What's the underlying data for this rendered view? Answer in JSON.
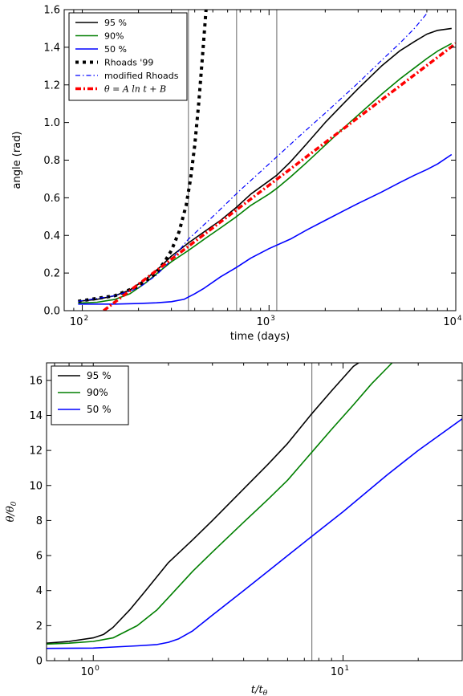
{
  "chart_data": [
    {
      "type": "line",
      "xscale": "log",
      "xlim": [
        80,
        10000
      ],
      "ylim": [
        0,
        1.6
      ],
      "xlabel": "time (days)",
      "ylabel": "angle (rad)",
      "xticks": [
        100,
        1000,
        10000
      ],
      "xtick_labels": [
        [
          "10",
          "2"
        ],
        [
          "10",
          "3"
        ],
        [
          "10",
          "4"
        ]
      ],
      "yticks": [
        0.0,
        0.2,
        0.4,
        0.6,
        0.8,
        1.0,
        1.2,
        1.4,
        1.6
      ],
      "ytick_labels": [
        "0.0",
        "0.2",
        "0.4",
        "0.6",
        "0.8",
        "1.0",
        "1.2",
        "1.4",
        "1.6"
      ],
      "vlines": [
        370,
        670,
        1100
      ],
      "legend_position": "top-left",
      "series": [
        {
          "name": "95 %",
          "color": "#000000",
          "style": "solid",
          "width": 1.6,
          "x": [
            95,
            120,
            150,
            180,
            220,
            260,
            300,
            370,
            450,
            550,
            670,
            800,
            1000,
            1100,
            1300,
            1600,
            2000,
            2500,
            3000,
            4000,
            5000,
            6000,
            7000,
            8000,
            9500
          ],
          "y": [
            0.05,
            0.06,
            0.08,
            0.11,
            0.17,
            0.23,
            0.29,
            0.36,
            0.42,
            0.48,
            0.55,
            0.62,
            0.69,
            0.72,
            0.79,
            0.89,
            1.0,
            1.1,
            1.18,
            1.3,
            1.38,
            1.43,
            1.47,
            1.49,
            1.5
          ]
        },
        {
          "name": "90%",
          "color": "#007f00",
          "style": "solid",
          "width": 1.6,
          "x": [
            95,
            120,
            150,
            180,
            220,
            260,
            300,
            370,
            450,
            550,
            670,
            800,
            1000,
            1100,
            1300,
            1600,
            2000,
            2500,
            3000,
            4000,
            5000,
            6000,
            7000,
            8000,
            9500
          ],
          "y": [
            0.04,
            0.045,
            0.06,
            0.09,
            0.15,
            0.21,
            0.26,
            0.32,
            0.38,
            0.44,
            0.5,
            0.56,
            0.62,
            0.65,
            0.71,
            0.79,
            0.88,
            0.97,
            1.04,
            1.15,
            1.23,
            1.29,
            1.34,
            1.38,
            1.42
          ]
        },
        {
          "name": "50 %",
          "color": "#0000ff",
          "style": "solid",
          "width": 1.6,
          "x": [
            95,
            150,
            200,
            250,
            300,
            350,
            400,
            450,
            550,
            670,
            800,
            1000,
            1300,
            1600,
            2000,
            2500,
            3000,
            4000,
            5000,
            6000,
            7000,
            8000,
            9500
          ],
          "y": [
            0.035,
            0.035,
            0.038,
            0.042,
            0.048,
            0.06,
            0.09,
            0.12,
            0.18,
            0.23,
            0.28,
            0.33,
            0.38,
            0.43,
            0.48,
            0.53,
            0.57,
            0.63,
            0.68,
            0.72,
            0.75,
            0.78,
            0.83
          ]
        },
        {
          "name": "Rhoads '99",
          "color": "#000000",
          "style": "thickdot",
          "width": 4,
          "x": [
            95,
            150,
            200,
            250,
            280,
            300,
            330,
            360,
            380,
            400,
            420,
            440,
            460
          ],
          "y": [
            0.05,
            0.08,
            0.13,
            0.2,
            0.27,
            0.32,
            0.42,
            0.56,
            0.7,
            0.88,
            1.1,
            1.35,
            1.6
          ]
        },
        {
          "name": "modified Rhoads",
          "color": "#0000ff",
          "style": "dashdot",
          "width": 1.2,
          "x": [
            95,
            150,
            200,
            250,
            300,
            370,
            500,
            700,
            1000,
            1500,
            2000,
            3000,
            4000,
            5000,
            6000,
            7000
          ],
          "y": [
            0.05,
            0.08,
            0.12,
            0.19,
            0.27,
            0.38,
            0.5,
            0.64,
            0.78,
            0.94,
            1.05,
            1.21,
            1.33,
            1.42,
            1.5,
            1.58
          ]
        },
        {
          "name": "θ = A ln t + B",
          "color": "#ff0000",
          "style": "thickdashdot",
          "width": 3.5,
          "x": [
            130,
            10000
          ],
          "y": [
            0.0,
            1.42
          ]
        }
      ]
    },
    {
      "type": "line",
      "xscale": "log",
      "xlim": [
        0.65,
        30
      ],
      "ylim": [
        0,
        17
      ],
      "xlabel": "t/tθ",
      "ylabel": "θ/θ0",
      "xticks": [
        1,
        10
      ],
      "xtick_labels": [
        [
          "10",
          "0"
        ],
        [
          "10",
          "1"
        ]
      ],
      "yticks": [
        0,
        2,
        4,
        6,
        8,
        10,
        12,
        14,
        16
      ],
      "ytick_labels": [
        "0",
        "2",
        "4",
        "6",
        "8",
        "10",
        "12",
        "14",
        "16"
      ],
      "vlines": [
        7.5
      ],
      "legend_position": "top-left",
      "series": [
        {
          "name": "95 %",
          "color": "#000000",
          "style": "solid",
          "width": 1.6,
          "x": [
            0.65,
            0.8,
            1.0,
            1.1,
            1.2,
            1.4,
            1.6,
            2.0,
            2.5,
            3.0,
            4.0,
            5.0,
            6.0,
            7.5,
            9.0,
            11.0,
            13.0
          ],
          "y": [
            1.0,
            1.1,
            1.3,
            1.5,
            1.9,
            2.9,
            3.9,
            5.6,
            6.9,
            8.0,
            9.8,
            11.2,
            12.4,
            14.1,
            15.4,
            16.8,
            17.5
          ]
        },
        {
          "name": "90%",
          "color": "#007f00",
          "style": "solid",
          "width": 1.6,
          "x": [
            0.65,
            0.8,
            1.0,
            1.2,
            1.5,
            1.8,
            2.0,
            2.5,
            3.0,
            4.0,
            5.0,
            6.0,
            7.5,
            9.0,
            11.0,
            13.0,
            15.0,
            17.0
          ],
          "y": [
            0.95,
            1.0,
            1.1,
            1.3,
            2.0,
            2.9,
            3.6,
            5.1,
            6.2,
            7.9,
            9.2,
            10.3,
            11.9,
            13.2,
            14.6,
            15.8,
            16.7,
            17.5
          ]
        },
        {
          "name": "50 %",
          "color": "#0000ff",
          "style": "solid",
          "width": 1.6,
          "x": [
            0.65,
            1.0,
            1.5,
            1.8,
            2.0,
            2.2,
            2.5,
            3.0,
            4.0,
            5.0,
            6.0,
            7.5,
            10.0,
            15.0,
            20.0,
            30.0
          ],
          "y": [
            0.7,
            0.72,
            0.85,
            0.92,
            1.05,
            1.25,
            1.7,
            2.6,
            4.0,
            5.1,
            6.0,
            7.1,
            8.5,
            10.6,
            12.0,
            13.8
          ]
        }
      ]
    }
  ]
}
